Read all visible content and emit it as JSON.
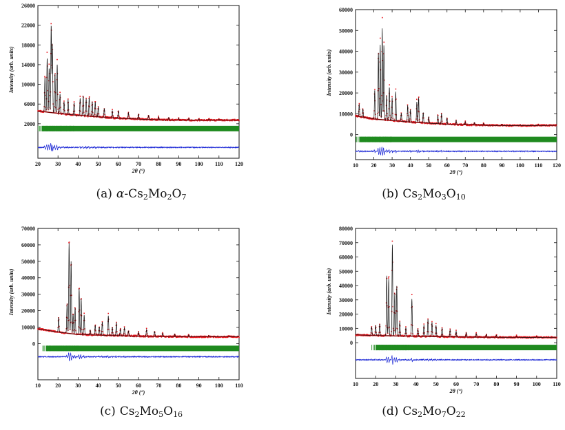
{
  "chart_data": [
    {
      "type": "line",
      "tag": "(a)",
      "caption": "α-Cs₂Mo₂O₇",
      "caption_html": "<i>α</i>-Cs<sub>2</sub>Mo<sub>2</sub>O<sub>7</sub>",
      "xlabel": "2θ (°)",
      "ylabel": "Intensity (arb. units)",
      "xlim": [
        20,
        120
      ],
      "ylim": [
        -5000,
        26000
      ],
      "x_ticks": [
        20,
        30,
        40,
        50,
        60,
        70,
        80,
        90,
        100,
        110,
        120
      ],
      "y_ticks": [
        2000,
        6000,
        10000,
        14000,
        18000,
        22000,
        26000
      ],
      "baseline_level": 2000,
      "background": [
        [
          20,
          4600
        ],
        [
          30,
          4100
        ],
        [
          40,
          3700
        ],
        [
          60,
          3100
        ],
        [
          80,
          2800
        ],
        [
          100,
          2700
        ],
        [
          120,
          2750
        ]
      ],
      "peaks": [
        [
          23.5,
          7000
        ],
        [
          24.6,
          11000
        ],
        [
          25.6,
          9000
        ],
        [
          26.6,
          17800
        ],
        [
          27.2,
          14000
        ],
        [
          28.5,
          8000
        ],
        [
          29.6,
          10000
        ],
        [
          31,
          4000
        ],
        [
          33,
          2500
        ],
        [
          35,
          3000
        ],
        [
          38,
          2500
        ],
        [
          41,
          3500
        ],
        [
          42.5,
          4000
        ],
        [
          44,
          3500
        ],
        [
          45.5,
          3800
        ],
        [
          47,
          3000
        ],
        [
          48.5,
          3000
        ],
        [
          50,
          2000
        ],
        [
          53,
          1800
        ],
        [
          57,
          1500
        ],
        [
          60,
          1500
        ],
        [
          65,
          1200
        ],
        [
          70,
          1000
        ],
        [
          75,
          800
        ],
        [
          80,
          600
        ],
        [
          85,
          500
        ],
        [
          90,
          400
        ],
        [
          95,
          350
        ],
        [
          100,
          300
        ],
        [
          105,
          250
        ],
        [
          110,
          200
        ]
      ],
      "diff_offset": -2800,
      "bragg_range": [
        20,
        120
      ]
    },
    {
      "type": "line",
      "tag": "(b)",
      "caption": "Cs₂Mo₃O₁₀",
      "caption_html": "Cs<sub>2</sub>Mo<sub>3</sub>O<sub>10</sub>",
      "xlabel": "2θ (°)",
      "ylabel": "Intensity (arb. units)",
      "xlim": [
        10,
        120
      ],
      "ylim": [
        -12000,
        60000
      ],
      "x_ticks": [
        10,
        20,
        30,
        40,
        50,
        60,
        70,
        80,
        90,
        100,
        110,
        120
      ],
      "y_ticks": [
        0,
        10000,
        20000,
        30000,
        40000,
        50000,
        60000
      ],
      "baseline_level": 0,
      "background": [
        [
          10,
          9000
        ],
        [
          20,
          7500
        ],
        [
          40,
          6000
        ],
        [
          60,
          5000
        ],
        [
          80,
          4500
        ],
        [
          100,
          4300
        ],
        [
          120,
          4500
        ]
      ],
      "peaks": [
        [
          12,
          6000
        ],
        [
          14,
          4000
        ],
        [
          20.5,
          14000
        ],
        [
          22.5,
          32000
        ],
        [
          23.5,
          36000
        ],
        [
          24.6,
          44000
        ],
        [
          25.5,
          36000
        ],
        [
          27,
          12000
        ],
        [
          28.5,
          16000
        ],
        [
          30,
          11000
        ],
        [
          32,
          14000
        ],
        [
          35,
          4000
        ],
        [
          38.5,
          8000
        ],
        [
          40,
          6000
        ],
        [
          43.5,
          10000
        ],
        [
          44.5,
          12000
        ],
        [
          47,
          5000
        ],
        [
          50,
          3000
        ],
        [
          55,
          4000
        ],
        [
          57,
          5000
        ],
        [
          60,
          3000
        ],
        [
          65,
          2000
        ],
        [
          70,
          1500
        ],
        [
          75,
          1200
        ],
        [
          80,
          900
        ],
        [
          90,
          600
        ],
        [
          100,
          400
        ],
        [
          110,
          300
        ]
      ],
      "diff_offset": -8000,
      "bragg_range": [
        10,
        120
      ]
    },
    {
      "type": "line",
      "tag": "(c)",
      "caption": "Cs₂Mo₅O₁₆",
      "caption_html": "Cs<sub>2</sub>Mo<sub>5</sub>O<sub>16</sub>",
      "xlabel": "2θ (°)",
      "ylabel": "Intensity (arb. units)",
      "xlim": [
        10,
        110
      ],
      "ylim": [
        -22000,
        70000
      ],
      "x_ticks": [
        10,
        20,
        30,
        40,
        50,
        60,
        70,
        80,
        90,
        100,
        110
      ],
      "y_ticks": [
        0,
        10000,
        20000,
        30000,
        40000,
        50000,
        60000,
        70000
      ],
      "baseline_level": 0,
      "background": [
        [
          10,
          9000
        ],
        [
          20,
          7000
        ],
        [
          30,
          5500
        ],
        [
          50,
          4800
        ],
        [
          70,
          4300
        ],
        [
          90,
          4100
        ],
        [
          110,
          4200
        ]
      ],
      "peaks": [
        [
          20.3,
          9000
        ],
        [
          24.5,
          18000
        ],
        [
          25.5,
          55000
        ],
        [
          26.5,
          44000
        ],
        [
          27.5,
          12000
        ],
        [
          28.5,
          16000
        ],
        [
          30.5,
          28000
        ],
        [
          31.5,
          22000
        ],
        [
          33,
          12000
        ],
        [
          36,
          3000
        ],
        [
          38.5,
          6000
        ],
        [
          40.5,
          5000
        ],
        [
          42,
          8000
        ],
        [
          45,
          12000
        ],
        [
          47,
          5000
        ],
        [
          49,
          8000
        ],
        [
          51,
          4000
        ],
        [
          53,
          5000
        ],
        [
          55,
          3000
        ],
        [
          60,
          2500
        ],
        [
          64,
          4000
        ],
        [
          68,
          3000
        ],
        [
          72,
          2000
        ],
        [
          78,
          1500
        ],
        [
          85,
          1200
        ],
        [
          95,
          800
        ],
        [
          105,
          500
        ]
      ],
      "diff_offset": -8000,
      "bragg_range": [
        12,
        110
      ]
    },
    {
      "type": "line",
      "tag": "(d)",
      "caption": "Cs₂Mo₇O₂₂",
      "caption_html": "Cs<sub>2</sub>Mo<sub>7</sub>O<sub>22</sub>",
      "xlabel": "2θ (°)",
      "ylabel": "Intensity (arb. units)",
      "xlim": [
        10,
        110
      ],
      "ylim": [
        -25000,
        80000
      ],
      "x_ticks": [
        10,
        20,
        30,
        40,
        50,
        60,
        70,
        80,
        90,
        100,
        110
      ],
      "y_ticks": [
        0,
        10000,
        20000,
        30000,
        40000,
        50000,
        60000,
        70000,
        80000
      ],
      "baseline_level": 0,
      "background": [
        [
          10,
          5500
        ],
        [
          20,
          5000
        ],
        [
          40,
          4500
        ],
        [
          60,
          4000
        ],
        [
          80,
          3800
        ],
        [
          100,
          3700
        ],
        [
          110,
          3800
        ]
      ],
      "peaks": [
        [
          18,
          6000
        ],
        [
          20,
          7000
        ],
        [
          22,
          8000
        ],
        [
          25.5,
          42000
        ],
        [
          26.5,
          40000
        ],
        [
          28.3,
          64000
        ],
        [
          29.5,
          30000
        ],
        [
          30.5,
          35000
        ],
        [
          32,
          10000
        ],
        [
          35,
          6000
        ],
        [
          38,
          26000
        ],
        [
          41,
          5000
        ],
        [
          44,
          8000
        ],
        [
          46,
          12000
        ],
        [
          48,
          10000
        ],
        [
          50,
          8000
        ],
        [
          53,
          6000
        ],
        [
          57,
          5000
        ],
        [
          60,
          4000
        ],
        [
          65,
          3000
        ],
        [
          70,
          2500
        ],
        [
          75,
          2000
        ],
        [
          80,
          1500
        ],
        [
          90,
          1000
        ],
        [
          100,
          700
        ]
      ],
      "diff_offset": -12000,
      "bragg_range": [
        18,
        110
      ]
    }
  ],
  "colors": {
    "observed": "#e8141b",
    "calculated": "#111111",
    "background": "#7a0000",
    "bragg": "#1f8a1f",
    "difference": "#1f2bd6",
    "axis": "#111111"
  }
}
